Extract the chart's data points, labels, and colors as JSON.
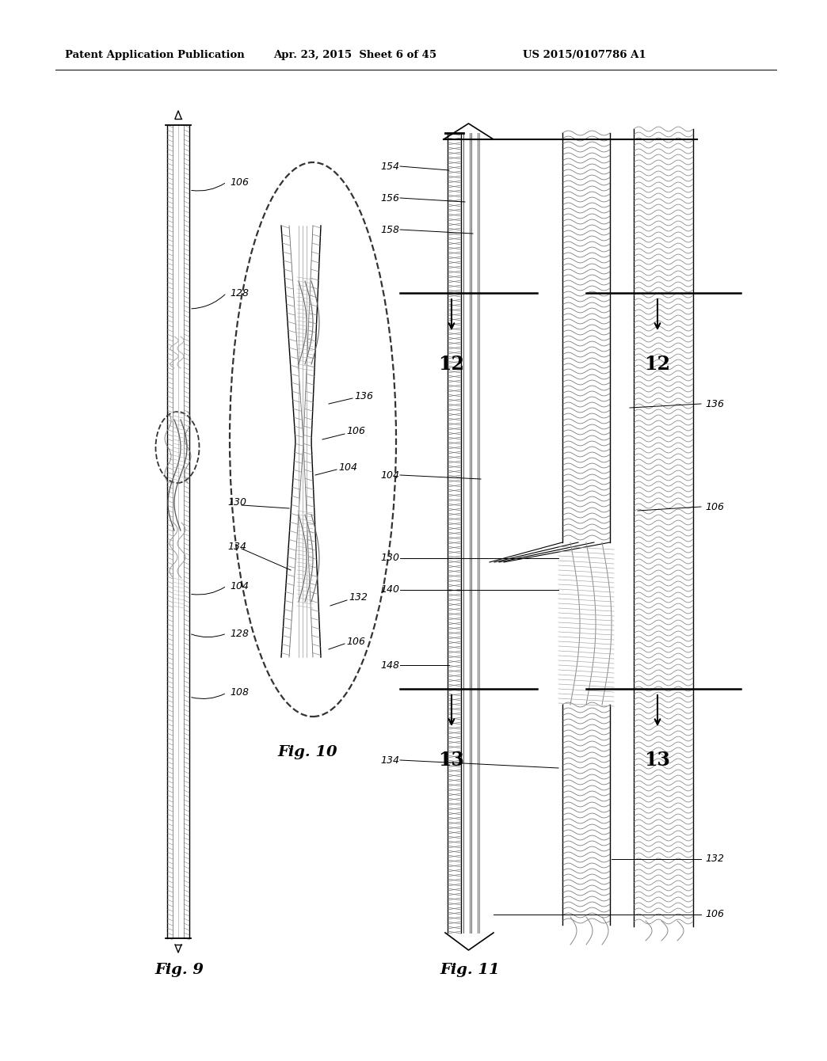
{
  "bg_color": "#ffffff",
  "header_text": "Patent Application Publication",
  "header_date": "Apr. 23, 2015  Sheet 6 of 45",
  "header_patent": "US 2015/0107786 A1",
  "fig9_label": "Fig. 9",
  "fig10_label": "Fig. 10",
  "fig11_label": "Fig. 11",
  "lc": "#000000"
}
